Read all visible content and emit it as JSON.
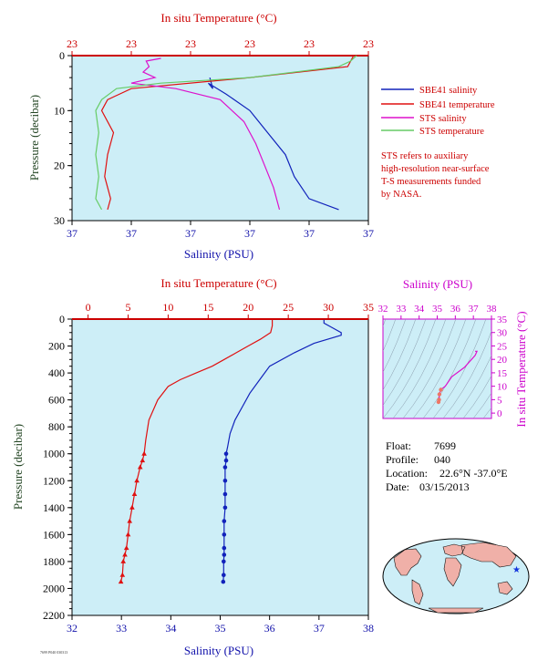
{
  "footer_code": "7699 P040 030313",
  "colors": {
    "plot_bg": "#cdeef7",
    "salinity": "#1122bb",
    "temperature": "#e01010",
    "sts_salinity": "#dd11cc",
    "sts_temperature": "#66cc66",
    "axis_red": "#cc0000",
    "axis_blue": "#1111aa",
    "axis_green": "#224422",
    "axis_magenta": "#cc00cc"
  },
  "legend": {
    "entries": [
      {
        "label": "SBE41 salinity",
        "color": "#1122bb"
      },
      {
        "label": "SBE41 temperature",
        "color": "#e01010"
      },
      {
        "label": "STS salinity",
        "color": "#dd11cc"
      },
      {
        "label": "STS temperature",
        "color": "#66cc66"
      }
    ],
    "note_lines": [
      "STS refers to auxiliary",
      "high-resolution near-surface",
      "T-S measurements funded",
      "by NASA."
    ]
  },
  "info": {
    "float_label": "Float:",
    "float_value": "7699",
    "profile_label": "Profile:",
    "profile_value": "040",
    "location_label": "Location:",
    "location_value": "22.6°N  -37.0°E",
    "date_label": "Date:",
    "date_value": "03/15/2013"
  },
  "chart_data": [
    {
      "type": "line",
      "panel": "near-surface",
      "top_axis_label": "In situ Temperature (°C)",
      "top_ticks": [
        "23",
        "23",
        "23",
        "23",
        "23",
        "23"
      ],
      "xlabel": "Salinity (PSU)",
      "x_ticks": [
        "37",
        "37",
        "37",
        "37",
        "37",
        "37"
      ],
      "ylabel": "Pressure (decibar)",
      "ylim": [
        30,
        0
      ],
      "y_ticks": [
        0,
        10,
        20,
        30
      ],
      "grid": false,
      "series": [
        {
          "name": "SBE41 salinity",
          "x_frac": [
            0.465,
            0.475,
            0.46,
            0.52,
            0.6,
            0.66,
            0.72,
            0.75,
            0.8,
            0.9
          ],
          "p": [
            4,
            6,
            5,
            7,
            10,
            14,
            18,
            22,
            26,
            28
          ]
        },
        {
          "name": "SBE41 temperature",
          "x_frac": [
            0.95,
            0.93,
            0.6,
            0.2,
            0.12,
            0.1,
            0.14,
            0.12,
            0.11,
            0.13,
            0.12
          ],
          "p": [
            0,
            2,
            4,
            6,
            8,
            10,
            14,
            18,
            22,
            26,
            28
          ]
        },
        {
          "name": "STS salinity",
          "x_frac": [
            0.3,
            0.25,
            0.26,
            0.24,
            0.28,
            0.2,
            0.35,
            0.5,
            0.58,
            0.62,
            0.65,
            0.68,
            0.7
          ],
          "p": [
            0.5,
            1,
            2,
            3,
            4,
            5,
            6,
            8,
            12,
            16,
            20,
            24,
            28
          ]
        },
        {
          "name": "STS temperature",
          "x_frac": [
            0.96,
            0.94,
            0.9,
            0.6,
            0.3,
            0.15,
            0.1,
            0.08,
            0.09,
            0.08,
            0.09,
            0.08,
            0.1
          ],
          "p": [
            0,
            1,
            2,
            4,
            5,
            6,
            8,
            10,
            14,
            18,
            22,
            26,
            28
          ]
        }
      ]
    },
    {
      "type": "line",
      "panel": "full-profile",
      "top_axis_label": "In situ Temperature (°C)",
      "top_ticks": [
        0,
        5,
        10,
        15,
        20,
        25,
        30,
        35
      ],
      "xlabel": "Salinity (PSU)",
      "x_ticks": [
        32,
        33,
        34,
        35,
        36,
        37,
        38
      ],
      "xlim": [
        32,
        38
      ],
      "temperature_lim": [
        -2,
        35
      ],
      "ylabel": "Pressure (decibar)",
      "ylim": [
        2200,
        0
      ],
      "y_ticks": [
        0,
        200,
        400,
        600,
        800,
        1000,
        1200,
        1400,
        1600,
        1800,
        2000,
        2200
      ],
      "grid": false,
      "series": [
        {
          "name": "SBE41 salinity",
          "salinity": [
            37.1,
            37.1,
            37.25,
            37.45,
            37.45,
            36.9,
            36.5,
            36.0,
            35.8,
            35.6,
            35.45,
            35.3,
            35.2,
            35.15,
            35.12,
            35.12,
            35.1,
            35.1,
            35.1,
            35.1,
            35.08,
            35.08,
            35.08,
            35.08,
            35.07,
            35.07,
            35.06
          ],
          "pressure": [
            5,
            30,
            60,
            100,
            120,
            180,
            250,
            350,
            450,
            550,
            650,
            750,
            850,
            950,
            1000,
            1050,
            1100,
            1200,
            1300,
            1400,
            1500,
            1600,
            1700,
            1750,
            1800,
            1900,
            1950
          ],
          "marker_from_pressure": 1000
        },
        {
          "name": "SBE41 temperature",
          "temperature": [
            23.0,
            23.0,
            22.8,
            21.5,
            20.0,
            18.5,
            17.0,
            15.5,
            13.5,
            11.5,
            10.0,
            8.7,
            7.6,
            7.2,
            7.0,
            6.8,
            6.5,
            6.1,
            5.8,
            5.5,
            5.2,
            5.0,
            4.8,
            4.6,
            4.4,
            4.3,
            4.1
          ],
          "pressure": [
            5,
            50,
            100,
            150,
            200,
            250,
            300,
            350,
            400,
            450,
            500,
            600,
            750,
            900,
            1000,
            1050,
            1100,
            1200,
            1300,
            1400,
            1500,
            1600,
            1700,
            1750,
            1800,
            1900,
            1950
          ],
          "marker_from_pressure": 1000
        }
      ]
    },
    {
      "type": "scatter",
      "panel": "T-S diagram",
      "top_axis_label": "Salinity (PSU)",
      "top_ticks": [
        32,
        33,
        34,
        35,
        36,
        37,
        38
      ],
      "xlim": [
        32,
        38
      ],
      "right_axis_label": "In situ Temperature (°C)",
      "right_ticks": [
        0,
        5,
        10,
        15,
        20,
        25,
        30,
        35
      ],
      "ylim": [
        -2,
        35
      ],
      "series": [
        {
          "name": "T-S profile",
          "salinity": [
            35.07,
            35.1,
            35.12,
            35.2,
            35.45,
            35.8,
            36.5,
            37.1,
            37.2,
            37.1
          ],
          "temperature": [
            4.1,
            5.0,
            7.0,
            8.7,
            10.0,
            13.5,
            17.0,
            21.5,
            23.0,
            23.0
          ]
        }
      ]
    }
  ]
}
